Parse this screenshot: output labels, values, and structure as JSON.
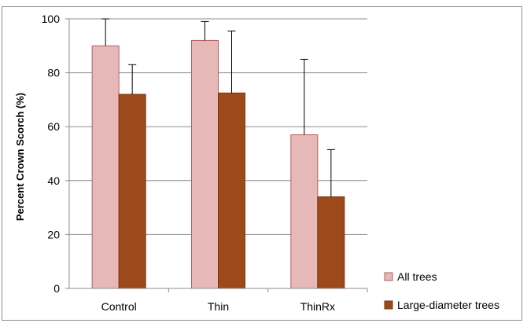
{
  "chart_data": {
    "type": "bar",
    "categories": [
      "Control",
      "Thin",
      "ThinRx"
    ],
    "ylabel": "Percent Crown Scorch (%)",
    "xlabel": "",
    "ylim": [
      0,
      100
    ],
    "yticks": [
      0,
      20,
      40,
      60,
      80,
      100
    ],
    "grid": true,
    "legend_position": "bottom-right",
    "series": [
      {
        "name": "All trees",
        "values": [
          90,
          92,
          57
        ],
        "error_upper": [
          100,
          99,
          85
        ],
        "color": "#e6b8b7",
        "edge_color": "#b45f5f"
      },
      {
        "name": "Large-diameter trees",
        "values": [
          72,
          72.5,
          34
        ],
        "error_upper": [
          83,
          95.5,
          51.5
        ],
        "color": "#9c4a1a",
        "edge_color": "#7a3510"
      }
    ]
  }
}
